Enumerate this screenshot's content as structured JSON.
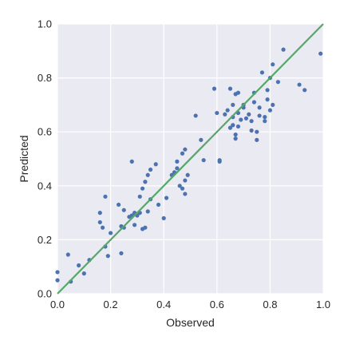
{
  "chart_data": {
    "type": "scatter",
    "xlabel": "Observed",
    "ylabel": "Predicted",
    "xlim": [
      0.0,
      1.0
    ],
    "ylim": [
      0.0,
      1.0
    ],
    "xticks": [
      "0.0",
      "0.2",
      "0.4",
      "0.6",
      "0.8",
      "1.0"
    ],
    "yticks": [
      "0.0",
      "0.2",
      "0.4",
      "0.6",
      "0.8",
      "1.0"
    ],
    "grid": true,
    "background_color": "#eaeaf2",
    "grid_color": "#ffffff",
    "point_color": "#4c72b0",
    "line_color": "#55a868",
    "reference_line": {
      "from": [
        0.0,
        0.0
      ],
      "to": [
        1.0,
        1.0
      ]
    },
    "points": [
      [
        0.0,
        0.08
      ],
      [
        0.0,
        0.05
      ],
      [
        0.04,
        0.145
      ],
      [
        0.05,
        0.045
      ],
      [
        0.08,
        0.105
      ],
      [
        0.1,
        0.075
      ],
      [
        0.12,
        0.125
      ],
      [
        0.16,
        0.265
      ],
      [
        0.16,
        0.3
      ],
      [
        0.17,
        0.245
      ],
      [
        0.18,
        0.36
      ],
      [
        0.18,
        0.175
      ],
      [
        0.19,
        0.14
      ],
      [
        0.2,
        0.225
      ],
      [
        0.23,
        0.33
      ],
      [
        0.24,
        0.25
      ],
      [
        0.24,
        0.15
      ],
      [
        0.25,
        0.31
      ],
      [
        0.25,
        0.245
      ],
      [
        0.27,
        0.285
      ],
      [
        0.28,
        0.29
      ],
      [
        0.28,
        0.49
      ],
      [
        0.29,
        0.3
      ],
      [
        0.29,
        0.255
      ],
      [
        0.3,
        0.29
      ],
      [
        0.31,
        0.36
      ],
      [
        0.31,
        0.3
      ],
      [
        0.32,
        0.24
      ],
      [
        0.32,
        0.39
      ],
      [
        0.33,
        0.415
      ],
      [
        0.33,
        0.245
      ],
      [
        0.34,
        0.44
      ],
      [
        0.34,
        0.305
      ],
      [
        0.35,
        0.46
      ],
      [
        0.35,
        0.35
      ],
      [
        0.37,
        0.48
      ],
      [
        0.38,
        0.33
      ],
      [
        0.4,
        0.28
      ],
      [
        0.41,
        0.355
      ],
      [
        0.43,
        0.44
      ],
      [
        0.44,
        0.45
      ],
      [
        0.45,
        0.49
      ],
      [
        0.45,
        0.465
      ],
      [
        0.46,
        0.4
      ],
      [
        0.47,
        0.52
      ],
      [
        0.47,
        0.39
      ],
      [
        0.48,
        0.42
      ],
      [
        0.48,
        0.37
      ],
      [
        0.48,
        0.535
      ],
      [
        0.49,
        0.44
      ],
      [
        0.52,
        0.66
      ],
      [
        0.54,
        0.57
      ],
      [
        0.55,
        0.495
      ],
      [
        0.59,
        0.76
      ],
      [
        0.6,
        0.67
      ],
      [
        0.61,
        0.495
      ],
      [
        0.61,
        0.49
      ],
      [
        0.63,
        0.665
      ],
      [
        0.64,
        0.68
      ],
      [
        0.65,
        0.615
      ],
      [
        0.65,
        0.76
      ],
      [
        0.66,
        0.625
      ],
      [
        0.66,
        0.7
      ],
      [
        0.66,
        0.655
      ],
      [
        0.67,
        0.59
      ],
      [
        0.67,
        0.575
      ],
      [
        0.67,
        0.74
      ],
      [
        0.68,
        0.62
      ],
      [
        0.68,
        0.745
      ],
      [
        0.68,
        0.67
      ],
      [
        0.69,
        0.645
      ],
      [
        0.7,
        0.69
      ],
      [
        0.7,
        0.7
      ],
      [
        0.71,
        0.65
      ],
      [
        0.72,
        0.665
      ],
      [
        0.73,
        0.605
      ],
      [
        0.73,
        0.64
      ],
      [
        0.74,
        0.745
      ],
      [
        0.74,
        0.71
      ],
      [
        0.75,
        0.6
      ],
      [
        0.75,
        0.57
      ],
      [
        0.76,
        0.69
      ],
      [
        0.76,
        0.66
      ],
      [
        0.77,
        0.82
      ],
      [
        0.78,
        0.655
      ],
      [
        0.78,
        0.64
      ],
      [
        0.79,
        0.755
      ],
      [
        0.79,
        0.72
      ],
      [
        0.8,
        0.8
      ],
      [
        0.8,
        0.68
      ],
      [
        0.81,
        0.7
      ],
      [
        0.81,
        0.85
      ],
      [
        0.83,
        0.785
      ],
      [
        0.85,
        0.905
      ],
      [
        0.91,
        0.775
      ],
      [
        0.93,
        0.755
      ],
      [
        0.99,
        0.89
      ]
    ]
  }
}
